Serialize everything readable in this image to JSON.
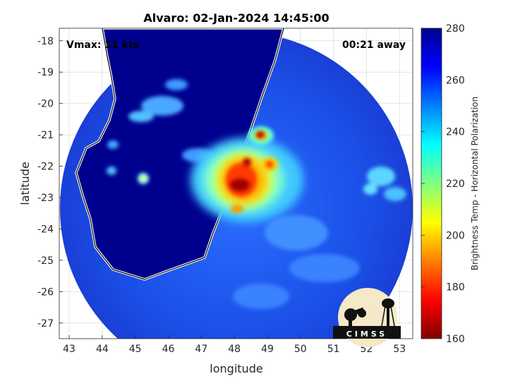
{
  "chart_data": {
    "type": "heatmap",
    "title": "Alvaro: 02-Jan-2024 14:45:00",
    "xlabel": "longitude",
    "ylabel": "latitude",
    "xlim": [
      42.7,
      53.4
    ],
    "ylim": [
      -27.5,
      -17.6
    ],
    "xticks": [
      "43",
      "44",
      "45",
      "46",
      "47",
      "48",
      "49",
      "50",
      "51",
      "52",
      "53"
    ],
    "yticks": [
      "-18",
      "-19",
      "-20",
      "-21",
      "-22",
      "-23",
      "-24",
      "-25",
      "-26",
      "-27"
    ],
    "grid": true,
    "annotations": {
      "left": "Vmax: 31 kts",
      "right": "00:21 away"
    },
    "colorbar": {
      "label": "Brightness Temp - Horizontal Polarization",
      "range": [
        160,
        280
      ],
      "ticks": [
        "280",
        "260",
        "240",
        "220",
        "200",
        "180",
        "160"
      ],
      "colormap": "jet"
    },
    "swath": {
      "center_lon": 47.9,
      "center_lat": -22.6,
      "radius_deg": 5.4
    },
    "features": [
      {
        "name": "storm core",
        "lon": 48.2,
        "lat": -22.5,
        "value": 165
      },
      {
        "name": "convective band",
        "lon": 48.0,
        "lat": -22.0,
        "value": 195
      },
      {
        "name": "north cell",
        "lon": 48.9,
        "lat": -20.9,
        "value": 175
      },
      {
        "name": "east cell",
        "lon": 49.2,
        "lat": -21.8,
        "value": 200
      },
      {
        "name": "south cell",
        "lon": 48.3,
        "lat": -23.3,
        "value": 205
      },
      {
        "name": "island rain",
        "lon": 45.3,
        "lat": -22.4,
        "value": 235
      }
    ],
    "logo_text": "CIMSS"
  }
}
